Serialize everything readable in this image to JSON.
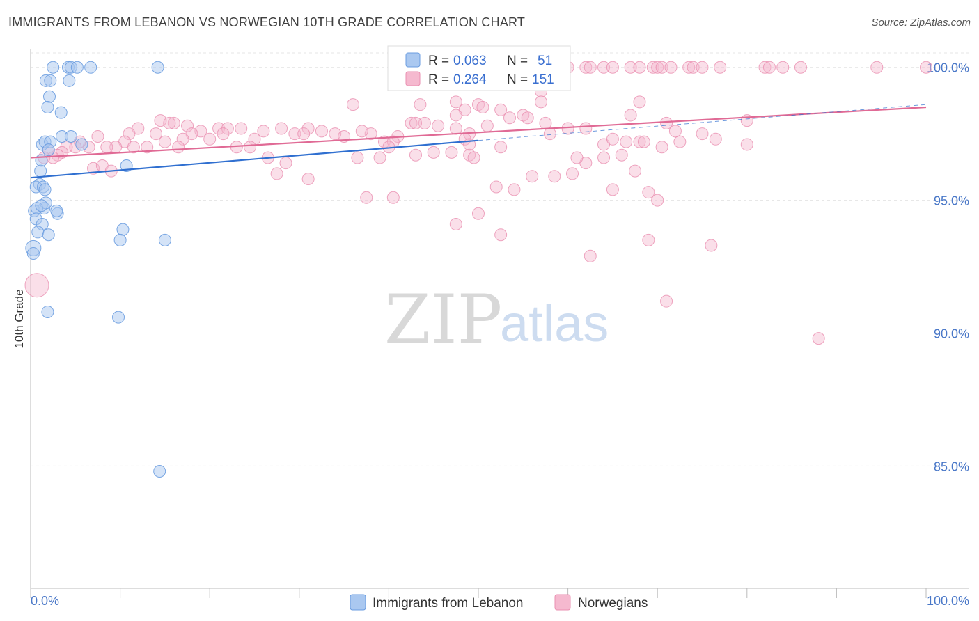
{
  "header": {
    "title": "IMMIGRANTS FROM LEBANON VS NORWEGIAN 10TH GRADE CORRELATION CHART",
    "source": "Source: ZipAtlas.com"
  },
  "watermark": {
    "zip": "ZIP",
    "atlas": "atlas"
  },
  "colors": {
    "lebanon_fill": "#aac8f0",
    "lebanon_stroke": "#6b9de0",
    "lebanon_line": "#2f6fd0",
    "norway_fill": "#f5b9cf",
    "norway_stroke": "#ea8fb0",
    "norway_line": "#e06a95"
  },
  "legend": {
    "r_label": "R =",
    "n_label": "N =",
    "lebanon": {
      "r": "0.063",
      "n": "51"
    },
    "norway": {
      "r": "0.264",
      "n": "151"
    }
  },
  "chart_data": {
    "type": "scatter",
    "title": "IMMIGRANTS FROM LEBANON VS NORWEGIAN 10TH GRADE CORRELATION CHART",
    "xlabel": "",
    "ylabel": "10th Grade",
    "xlim": [
      0,
      100
    ],
    "ylim": [
      80.4,
      100.7
    ],
    "x_tick_labels": [
      "0.0%",
      "100.0%"
    ],
    "y_ticks": [
      85,
      90,
      95,
      100
    ],
    "y_tick_labels": [
      "85.0%",
      "90.0%",
      "95.0%",
      "100.0%"
    ],
    "grid": true,
    "series": [
      {
        "name": "Immigrants from Lebanon",
        "r": 0.063,
        "n": 51,
        "trend": {
          "x": [
            0,
            50
          ],
          "y": [
            95.85,
            97.25
          ]
        },
        "trend_dashed": {
          "x": [
            50,
            100
          ],
          "y": [
            97.25,
            98.6
          ]
        },
        "points": [
          [
            2.5,
            100
          ],
          [
            4.2,
            100
          ],
          [
            4.5,
            100
          ],
          [
            5.2,
            100
          ],
          [
            6.7,
            100
          ],
          [
            14.2,
            100
          ],
          [
            1.7,
            99.5
          ],
          [
            2.2,
            99.5
          ],
          [
            4.3,
            99.5
          ],
          [
            2.1,
            98.9
          ],
          [
            1.9,
            98.5
          ],
          [
            3.4,
            98.3
          ],
          [
            3.5,
            97.4
          ],
          [
            4.5,
            97.4
          ],
          [
            1.3,
            97.1
          ],
          [
            1.6,
            97.2
          ],
          [
            2.2,
            97.2
          ],
          [
            5.7,
            97.1
          ],
          [
            2.0,
            96.9
          ],
          [
            1.2,
            96.5
          ],
          [
            1.1,
            96.1
          ],
          [
            10.7,
            96.3
          ],
          [
            1.0,
            95.6
          ],
          [
            0.6,
            95.5
          ],
          [
            1.4,
            95.5
          ],
          [
            1.6,
            95.4
          ],
          [
            0.4,
            94.6
          ],
          [
            1.5,
            94.7
          ],
          [
            1.7,
            94.9
          ],
          [
            0.7,
            94.7
          ],
          [
            1.2,
            94.8
          ],
          [
            3.0,
            94.5
          ],
          [
            2.9,
            94.6
          ],
          [
            0.6,
            94.3
          ],
          [
            1.3,
            94.1
          ],
          [
            0.8,
            93.8
          ],
          [
            2.0,
            93.7
          ],
          [
            10.3,
            93.9
          ],
          [
            10.0,
            93.5
          ],
          [
            15.0,
            93.5
          ],
          [
            0.3,
            93.2
          ],
          [
            0.3,
            93.0
          ],
          [
            1.9,
            90.8
          ],
          [
            9.8,
            90.6
          ],
          [
            14.4,
            84.8
          ]
        ]
      },
      {
        "name": "Norwegians",
        "r": 0.264,
        "n": 151,
        "trend": {
          "x": [
            0,
            100
          ],
          "y": [
            96.6,
            98.5
          ]
        },
        "points": [
          [
            60.0,
            100
          ],
          [
            62.0,
            100
          ],
          [
            62.5,
            100
          ],
          [
            64.0,
            100
          ],
          [
            65.0,
            100
          ],
          [
            67.0,
            100
          ],
          [
            68.0,
            100
          ],
          [
            69.5,
            100
          ],
          [
            70.0,
            100
          ],
          [
            70.5,
            100
          ],
          [
            71.5,
            100
          ],
          [
            73.5,
            100
          ],
          [
            74.0,
            100
          ],
          [
            75.0,
            100
          ],
          [
            77.0,
            100
          ],
          [
            82.0,
            100
          ],
          [
            82.5,
            100
          ],
          [
            84.0,
            100
          ],
          [
            86.0,
            100
          ],
          [
            94.5,
            100
          ],
          [
            100.0,
            100
          ],
          [
            57.0,
            99.1
          ],
          [
            47.5,
            98.7
          ],
          [
            57.0,
            98.7
          ],
          [
            50.0,
            98.6
          ],
          [
            36.0,
            98.6
          ],
          [
            68.0,
            98.7
          ],
          [
            48.5,
            98.4
          ],
          [
            50.5,
            98.5
          ],
          [
            47.5,
            98.2
          ],
          [
            55.0,
            98.2
          ],
          [
            52.5,
            98.4
          ],
          [
            55.5,
            98.1
          ],
          [
            53.5,
            98.1
          ],
          [
            67.0,
            98.2
          ],
          [
            80.0,
            98.0
          ],
          [
            71.0,
            97.9
          ],
          [
            57.5,
            97.9
          ],
          [
            42.5,
            97.9
          ],
          [
            44.0,
            97.9
          ],
          [
            43.0,
            97.9
          ],
          [
            45.5,
            97.8
          ],
          [
            51.0,
            97.8
          ],
          [
            49.0,
            97.5
          ],
          [
            47.5,
            97.7
          ],
          [
            58.0,
            97.5
          ],
          [
            60.0,
            97.7
          ],
          [
            68.0,
            97.2
          ],
          [
            62.0,
            97.7
          ],
          [
            72.0,
            97.6
          ],
          [
            41.0,
            97.4
          ],
          [
            38.0,
            97.5
          ],
          [
            39.5,
            97.2
          ],
          [
            40.5,
            97.2
          ],
          [
            37.0,
            97.6
          ],
          [
            48.5,
            97.3
          ],
          [
            49.0,
            97.1
          ],
          [
            26.0,
            97.6
          ],
          [
            28.0,
            97.7
          ],
          [
            31.0,
            97.7
          ],
          [
            29.5,
            97.5
          ],
          [
            32.5,
            97.6
          ],
          [
            34.0,
            97.5
          ],
          [
            30.5,
            97.5
          ],
          [
            25.0,
            97.3
          ],
          [
            24.5,
            97.0
          ],
          [
            21.0,
            97.7
          ],
          [
            22.0,
            97.7
          ],
          [
            23.5,
            97.7
          ],
          [
            19.0,
            97.6
          ],
          [
            17.5,
            97.8
          ],
          [
            16.0,
            97.9
          ],
          [
            14.5,
            98.0
          ],
          [
            15.5,
            97.9
          ],
          [
            18.0,
            97.5
          ],
          [
            20.0,
            97.3
          ],
          [
            21.5,
            97.5
          ],
          [
            23.0,
            97.0
          ],
          [
            17.0,
            97.3
          ],
          [
            16.5,
            97.0
          ],
          [
            15.0,
            97.2
          ],
          [
            14.0,
            97.5
          ],
          [
            12.0,
            97.7
          ],
          [
            11.0,
            97.5
          ],
          [
            10.5,
            97.2
          ],
          [
            9.5,
            97.0
          ],
          [
            8.5,
            97.0
          ],
          [
            7.5,
            97.4
          ],
          [
            6.5,
            97.0
          ],
          [
            5.5,
            97.2
          ],
          [
            5.0,
            97.0
          ],
          [
            4.0,
            97.0
          ],
          [
            3.5,
            96.8
          ],
          [
            3.0,
            96.7
          ],
          [
            2.5,
            96.6
          ],
          [
            2.0,
            96.9
          ],
          [
            1.5,
            96.6
          ],
          [
            7.0,
            96.2
          ],
          [
            8.0,
            96.3
          ],
          [
            9.0,
            96.1
          ],
          [
            11.5,
            97.0
          ],
          [
            13.0,
            97.0
          ],
          [
            26.5,
            96.6
          ],
          [
            27.5,
            96.0
          ],
          [
            28.5,
            96.4
          ],
          [
            31.0,
            95.8
          ],
          [
            36.5,
            96.6
          ],
          [
            39.0,
            96.6
          ],
          [
            40.0,
            97.0
          ],
          [
            43.0,
            96.7
          ],
          [
            45.0,
            96.8
          ],
          [
            47.0,
            96.8
          ],
          [
            40.5,
            95.1
          ],
          [
            49.0,
            96.7
          ],
          [
            49.5,
            96.6
          ],
          [
            52.0,
            95.5
          ],
          [
            54.0,
            95.4
          ],
          [
            56.0,
            95.9
          ],
          [
            58.5,
            95.9
          ],
          [
            60.5,
            96.0
          ],
          [
            62.0,
            96.4
          ],
          [
            64.0,
            97.1
          ],
          [
            66.0,
            96.7
          ],
          [
            67.5,
            96.1
          ],
          [
            52.5,
            97.0
          ],
          [
            61.0,
            96.6
          ],
          [
            65.0,
            97.3
          ],
          [
            66.5,
            97.2
          ],
          [
            68.5,
            97.2
          ],
          [
            70.5,
            97.0
          ],
          [
            72.5,
            97.2
          ],
          [
            75.0,
            97.5
          ],
          [
            76.5,
            97.3
          ],
          [
            80.0,
            97.1
          ],
          [
            64.0,
            96.6
          ],
          [
            69.0,
            95.3
          ],
          [
            70.0,
            95.0
          ],
          [
            65.0,
            95.4
          ],
          [
            37.5,
            95.1
          ],
          [
            47.5,
            94.1
          ],
          [
            50.0,
            94.5
          ],
          [
            52.5,
            93.7
          ],
          [
            62.5,
            92.9
          ],
          [
            76.0,
            93.3
          ],
          [
            69.0,
            93.5
          ],
          [
            71.0,
            91.2
          ],
          [
            88.0,
            89.8
          ],
          [
            35.0,
            97.4
          ],
          [
            43.5,
            98.6
          ],
          [
            0.7,
            91.8
          ]
        ]
      }
    ]
  },
  "bottom_legend": {
    "lebanon_label": "Immigrants from Lebanon",
    "norway_label": "Norwegians"
  }
}
